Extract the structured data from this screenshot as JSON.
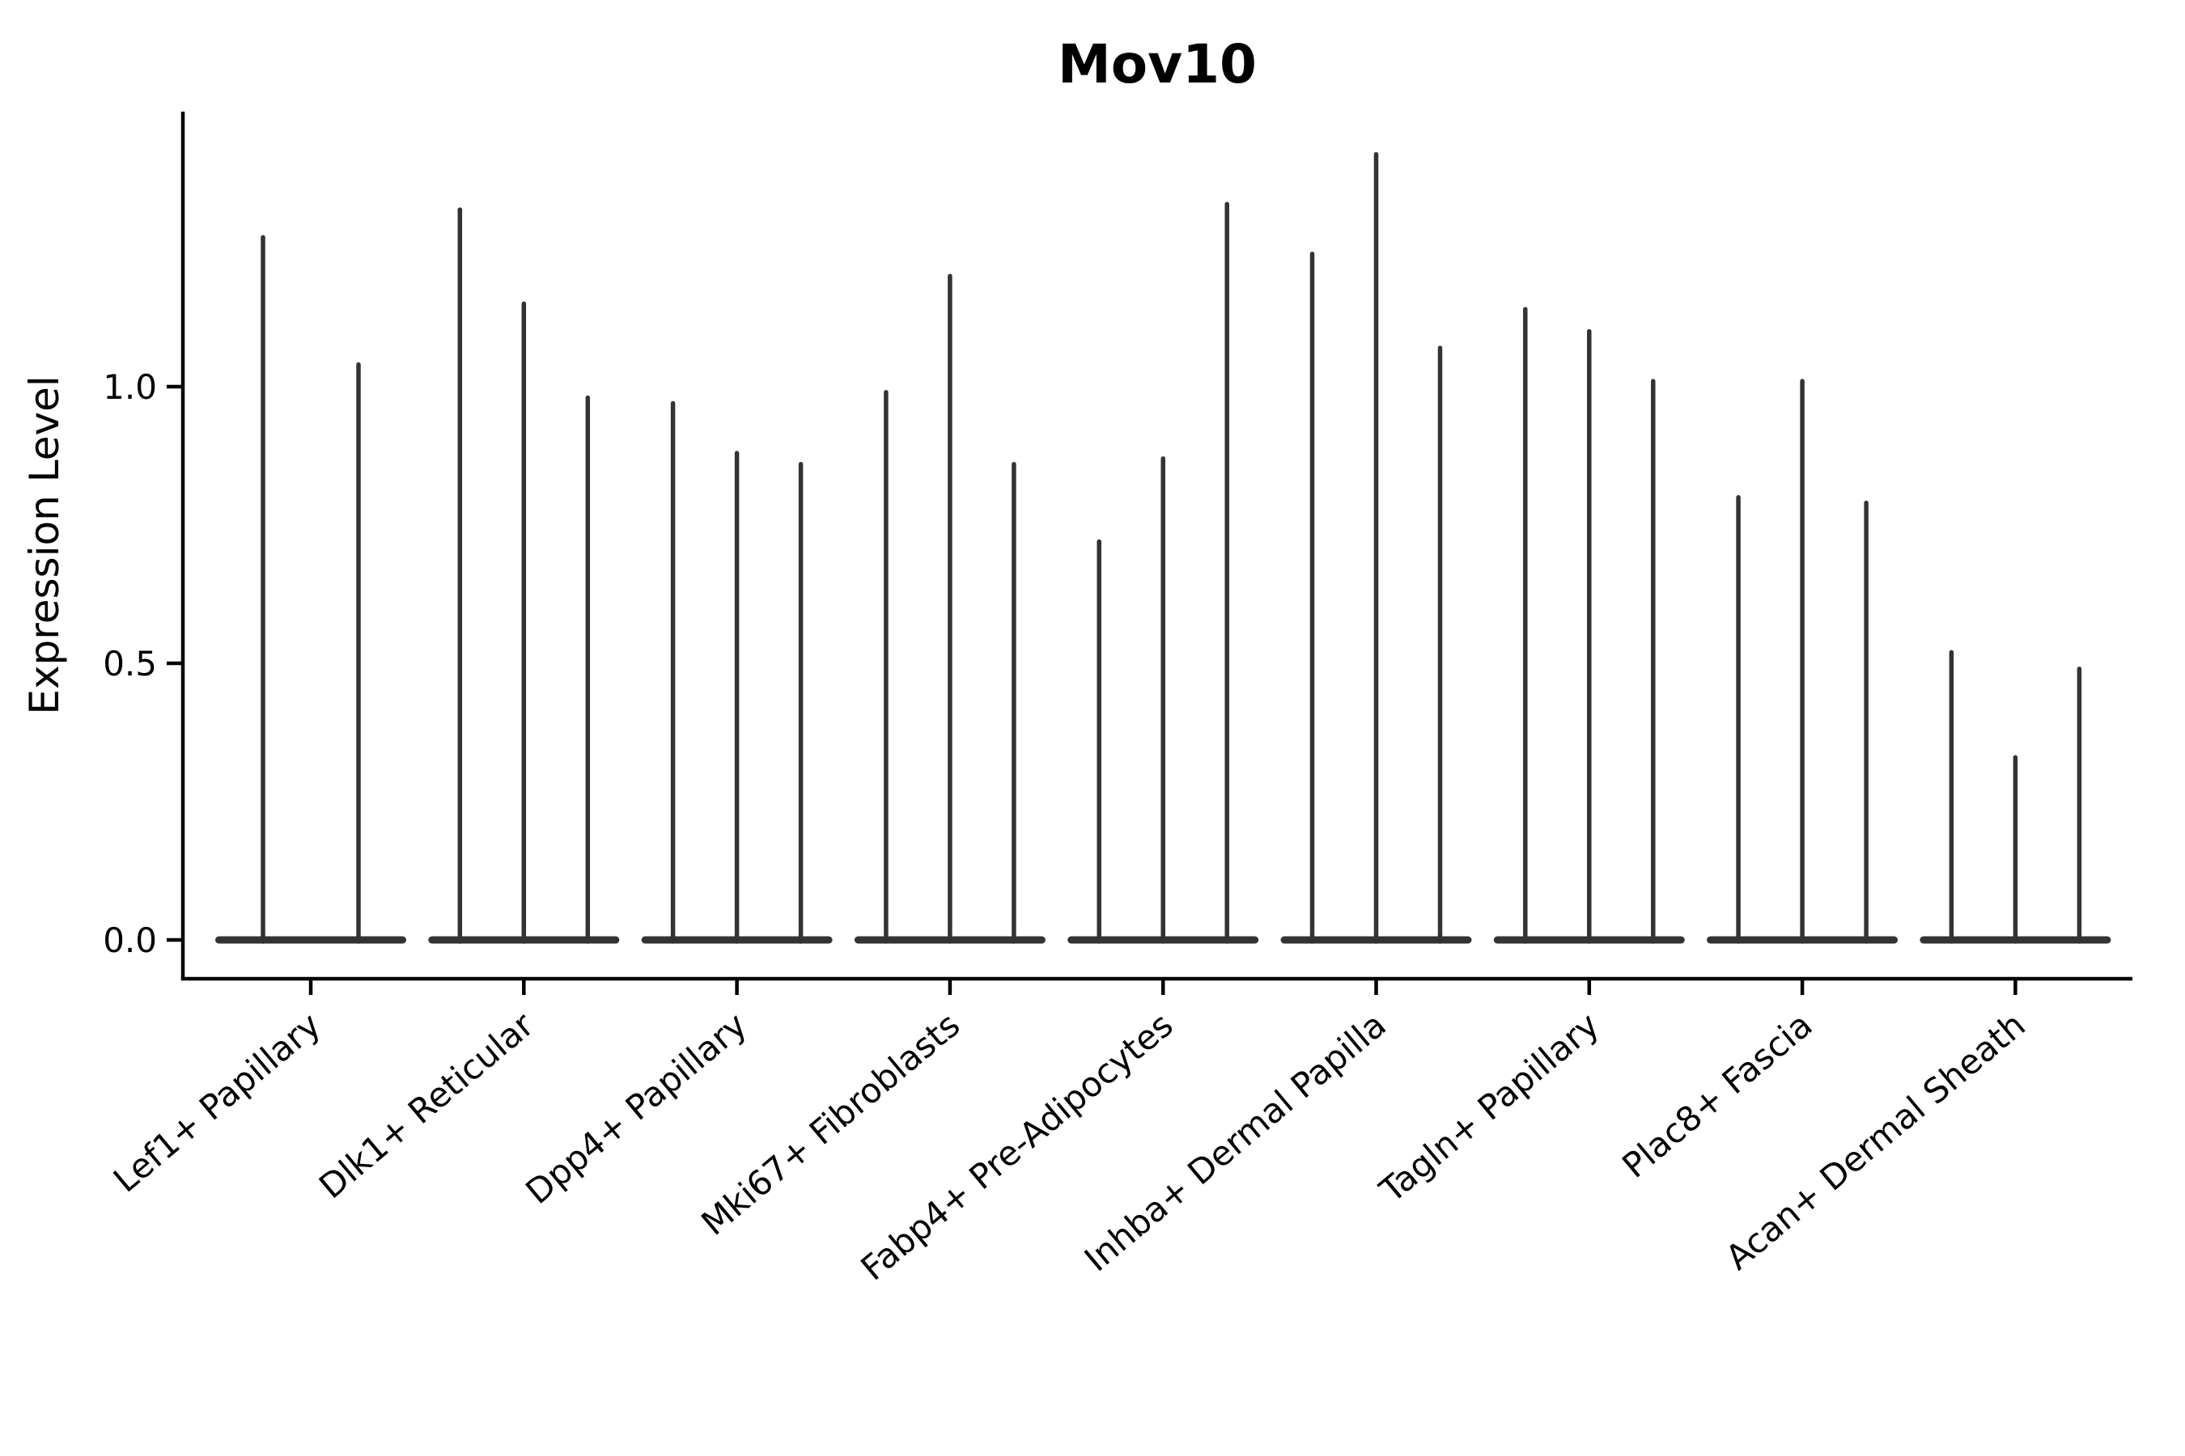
{
  "chart_data": {
    "type": "violin",
    "title": "Mov10",
    "ylabel": "Expression Level",
    "xlabel": "",
    "legend": null,
    "grid": false,
    "ylim": [
      -0.07,
      1.5
    ],
    "yticks": [
      {
        "value": 0.0,
        "label": "0.0"
      },
      {
        "value": 0.5,
        "label": "0.5"
      },
      {
        "value": 1.0,
        "label": "1.0"
      }
    ],
    "categories": [
      "Lef1+ Papillary",
      "Dlk1+ Reticular",
      "Dpp4+ Papillary",
      "Mki67+ Fibroblasts",
      "Fabp4+ Pre-Adipocytes",
      "Inhba+ Dermal Papilla",
      "Tagln+ Papillary",
      "Plac8+ Fascia",
      "Acan+ Dermal Sheath"
    ],
    "groups": [
      {
        "category": "Lef1+ Papillary",
        "violin_tips": [
          1.27,
          1.04
        ]
      },
      {
        "category": "Dlk1+ Reticular",
        "violin_tips": [
          1.32,
          1.15,
          0.98
        ]
      },
      {
        "category": "Dpp4+ Papillary",
        "violin_tips": [
          0.97,
          0.88,
          0.86
        ]
      },
      {
        "category": "Mki67+ Fibroblasts",
        "violin_tips": [
          0.99,
          1.2,
          0.86
        ]
      },
      {
        "category": "Fabp4+ Pre-Adipocytes",
        "violin_tips": [
          0.72,
          0.87,
          1.33
        ]
      },
      {
        "category": "Inhba+ Dermal Papilla",
        "violin_tips": [
          1.24,
          1.42,
          1.07
        ]
      },
      {
        "category": "Tagln+ Papillary",
        "violin_tips": [
          1.14,
          1.1,
          1.01
        ]
      },
      {
        "category": "Plac8+ Fascia",
        "violin_tips": [
          0.8,
          1.01,
          0.79
        ]
      },
      {
        "category": "Acan+ Dermal Sheath",
        "violin_tips": [
          0.52,
          0.33,
          0.49
        ]
      }
    ],
    "colors": {
      "violin": "#333333",
      "axis": "#000000",
      "text": "#000000",
      "background": "#ffffff"
    }
  }
}
